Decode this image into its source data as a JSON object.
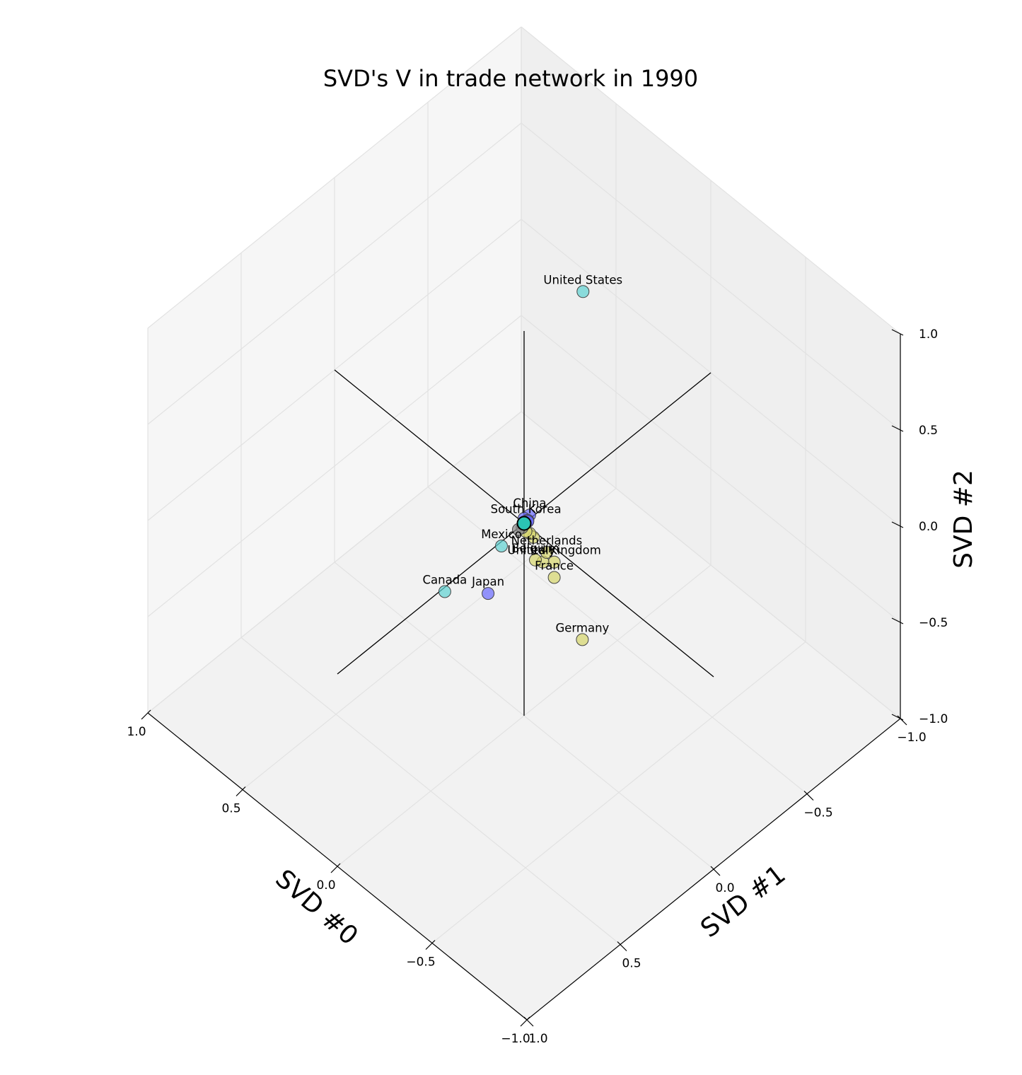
{
  "chart_data": {
    "type": "scatter",
    "projection": "3d",
    "title": "SVD's V in trade network in 1990",
    "xlabel": "SVD #0",
    "ylabel": "SVD #1",
    "zlabel": "SVD #2",
    "xlim": [
      -1.0,
      1.0
    ],
    "ylim": [
      -1.0,
      1.0
    ],
    "zlim": [
      -1.0,
      1.0
    ],
    "x_ticks": [
      "1.0",
      "0.5",
      "0.0",
      "−0.5",
      "−1.0"
    ],
    "y_ticks": [
      "−1.0",
      "−0.5",
      "0.0",
      "0.5",
      "1.0"
    ],
    "z_ticks": [
      "1.0",
      "0.5",
      "0.0",
      "−0.5",
      "−1.0"
    ],
    "grid": true,
    "colors": {
      "americas": "#5fd3d3",
      "europe": "#d6d66b",
      "asia": "#6a6aff",
      "other": "#888888",
      "origin": "#2bc4b4"
    },
    "points": [
      {
        "label": "United States",
        "x": 0.3,
        "y": -0.62,
        "z": 0.48,
        "group": "americas"
      },
      {
        "label": "Canada",
        "x": 0.3,
        "y": 0.12,
        "z": -0.5,
        "group": "americas"
      },
      {
        "label": "Mexico",
        "x": 0.08,
        "y": 0.04,
        "z": -0.15,
        "group": "americas"
      },
      {
        "label": "Japan",
        "x": 0.18,
        "y": 0.01,
        "z": -0.5,
        "group": "asia"
      },
      {
        "label": "China",
        "x": 0.0,
        "y": -0.03,
        "z": 0.02,
        "group": "asia"
      },
      {
        "label": "South Korea",
        "x": 0.01,
        "y": -0.02,
        "z": -0.01,
        "group": "asia"
      },
      {
        "label": "Germany",
        "x": -0.15,
        "y": -0.16,
        "z": -0.61,
        "group": "europe"
      },
      {
        "label": "France",
        "x": -0.08,
        "y": -0.08,
        "z": -0.28,
        "group": "europe"
      },
      {
        "label": "United Kingdom",
        "x": -0.08,
        "y": -0.08,
        "z": -0.2,
        "group": "europe"
      },
      {
        "label": "Italy",
        "x": -0.05,
        "y": -0.05,
        "z": -0.2,
        "group": "europe"
      },
      {
        "label": "Netherlands",
        "x": -0.06,
        "y": -0.06,
        "z": -0.15,
        "group": "europe"
      },
      {
        "label": "Belgium",
        "x": -0.03,
        "y": -0.03,
        "z": -0.19,
        "group": "europe"
      },
      {
        "label": "",
        "x": -0.02,
        "y": -0.03,
        "z": -0.08,
        "group": "europe"
      },
      {
        "label": "",
        "x": -0.01,
        "y": -0.02,
        "z": -0.06,
        "group": "europe"
      },
      {
        "label": "",
        "x": 0.0,
        "y": -0.01,
        "z": -0.05,
        "group": "europe"
      },
      {
        "label": "",
        "x": 0.01,
        "y": 0.0,
        "z": -0.03,
        "group": "other"
      },
      {
        "label": "",
        "x": 0.02,
        "y": 0.01,
        "z": -0.04,
        "group": "other"
      },
      {
        "label": "",
        "x": 0.01,
        "y": -0.01,
        "z": 0.01,
        "group": "asia"
      },
      {
        "label": "",
        "x": 0.0,
        "y": -0.02,
        "z": 0.0,
        "group": "asia"
      },
      {
        "label": "",
        "x": -0.01,
        "y": -0.01,
        "z": 0.01,
        "group": "asia"
      },
      {
        "label": "",
        "x": 0.0,
        "y": 0.0,
        "z": 0.0,
        "group": "origin"
      }
    ]
  }
}
